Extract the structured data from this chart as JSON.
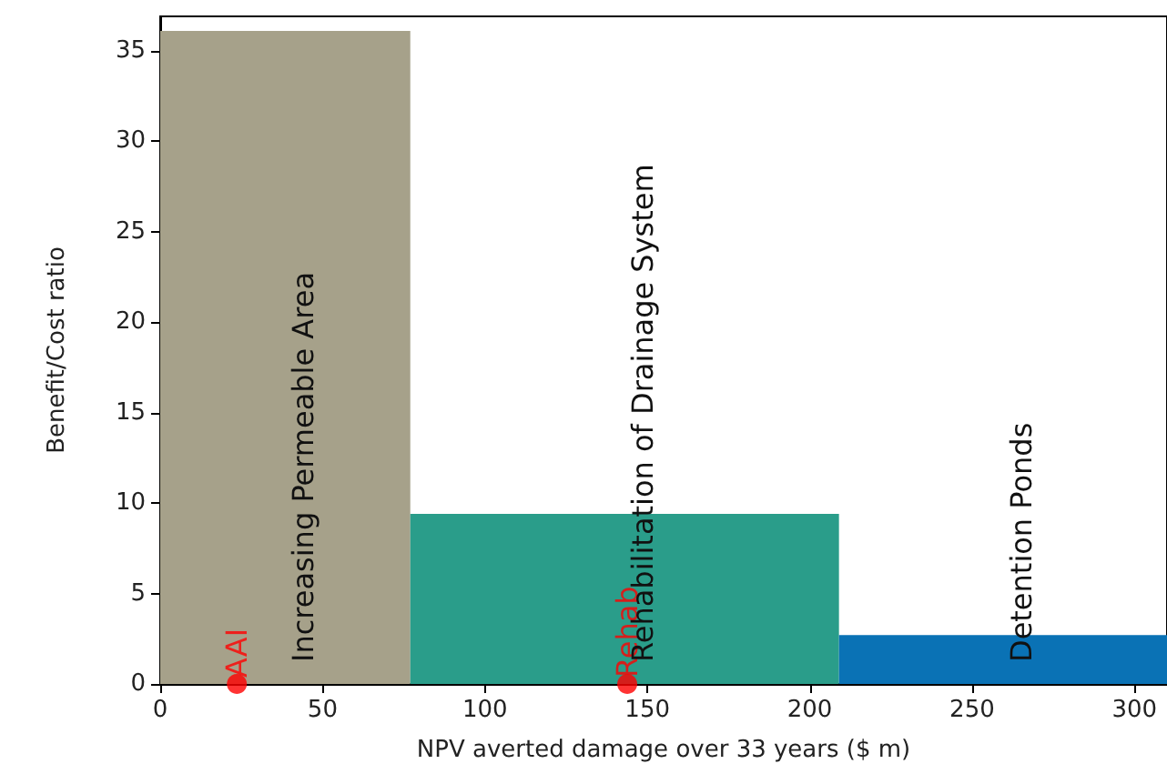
{
  "chart_data": {
    "type": "histogram",
    "xlabel": "NPV averted damage over 33 years ($ m)",
    "ylabel": "Benefit/Cost ratio",
    "bins": [
      0,
      77,
      209,
      310
    ],
    "values": [
      36.1,
      9.4,
      2.7
    ],
    "colors": [
      "#a6a18a",
      "#2a9d8a",
      "#0a72b5"
    ],
    "series": [
      {
        "type": "scatter",
        "x": [
          23.6,
          143.8
        ],
        "values": [
          0,
          0
        ],
        "color": "#ff0000",
        "value_labels": [
          "AAI",
          "Rehab"
        ]
      }
    ],
    "annotations": [
      "Increasing Permeable Area",
      "Rehabilitation of Drainage System",
      "Detention Ponds"
    ],
    "xlim": [
      0,
      310
    ],
    "ylim": [
      0,
      36.9
    ],
    "xticks": [
      0,
      50,
      100,
      150,
      200,
      250,
      300
    ],
    "yticks": [
      0,
      5,
      10,
      15,
      20,
      25,
      30,
      35
    ],
    "grid": false,
    "marker": "circle"
  }
}
